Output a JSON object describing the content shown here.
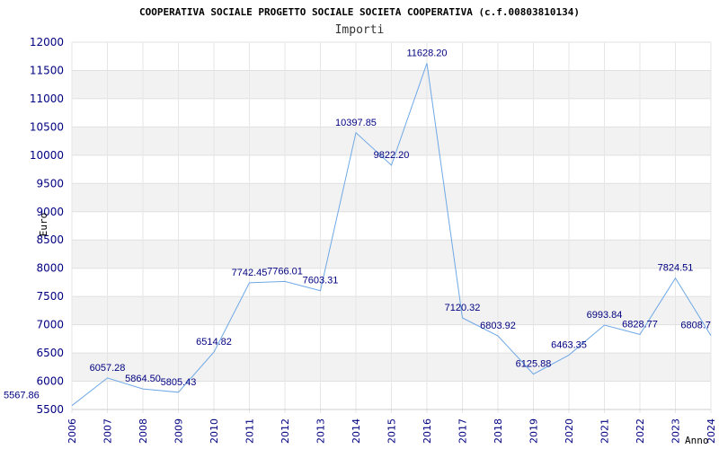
{
  "chart_data": {
    "type": "line",
    "title": "COOPERATIVA SOCIALE PROGETTO SOCIALE SOCIETA COOPERATIVA (c.f.00803810134)",
    "subtitle": "Importi",
    "xlabel": "Anno",
    "ylabel": "Euro",
    "x": [
      "2006",
      "2007",
      "2008",
      "2009",
      "2010",
      "2011",
      "2012",
      "2013",
      "2014",
      "2015",
      "2016",
      "2017",
      "2018",
      "2019",
      "2020",
      "2021",
      "2022",
      "2023",
      "2024"
    ],
    "series": [
      {
        "values": [
          5567.86,
          6057.28,
          5864.5,
          5805.43,
          6514.82,
          7742.45,
          7766.01,
          7603.31,
          10397.85,
          9822.2,
          11628.2,
          7120.32,
          6803.92,
          6125.88,
          6463.35,
          6993.84,
          6828.77,
          7824.51,
          6808.7
        ],
        "labels": [
          "5567.86",
          "6057.28",
          "5864.50",
          "5805.43",
          "6514.82",
          "7742.45",
          "7766.01",
          "7603.31",
          "10397.85",
          "9822.20",
          "11628.20",
          "7120.32",
          "6803.92",
          "6125.88",
          "6463.35",
          "6993.84",
          "6828.77",
          "7824.51",
          "6808.7"
        ]
      }
    ],
    "ylim": [
      5500,
      12000
    ],
    "yticks": [
      "5500",
      "6000",
      "6500",
      "7000",
      "7500",
      "8000",
      "8500",
      "9000",
      "9500",
      "10000",
      "10500",
      "11000",
      "11500",
      "12000"
    ],
    "grid": true,
    "line_color": "#6fa8e6",
    "band_color": "#f2f2f2",
    "label_color": "#000080"
  }
}
